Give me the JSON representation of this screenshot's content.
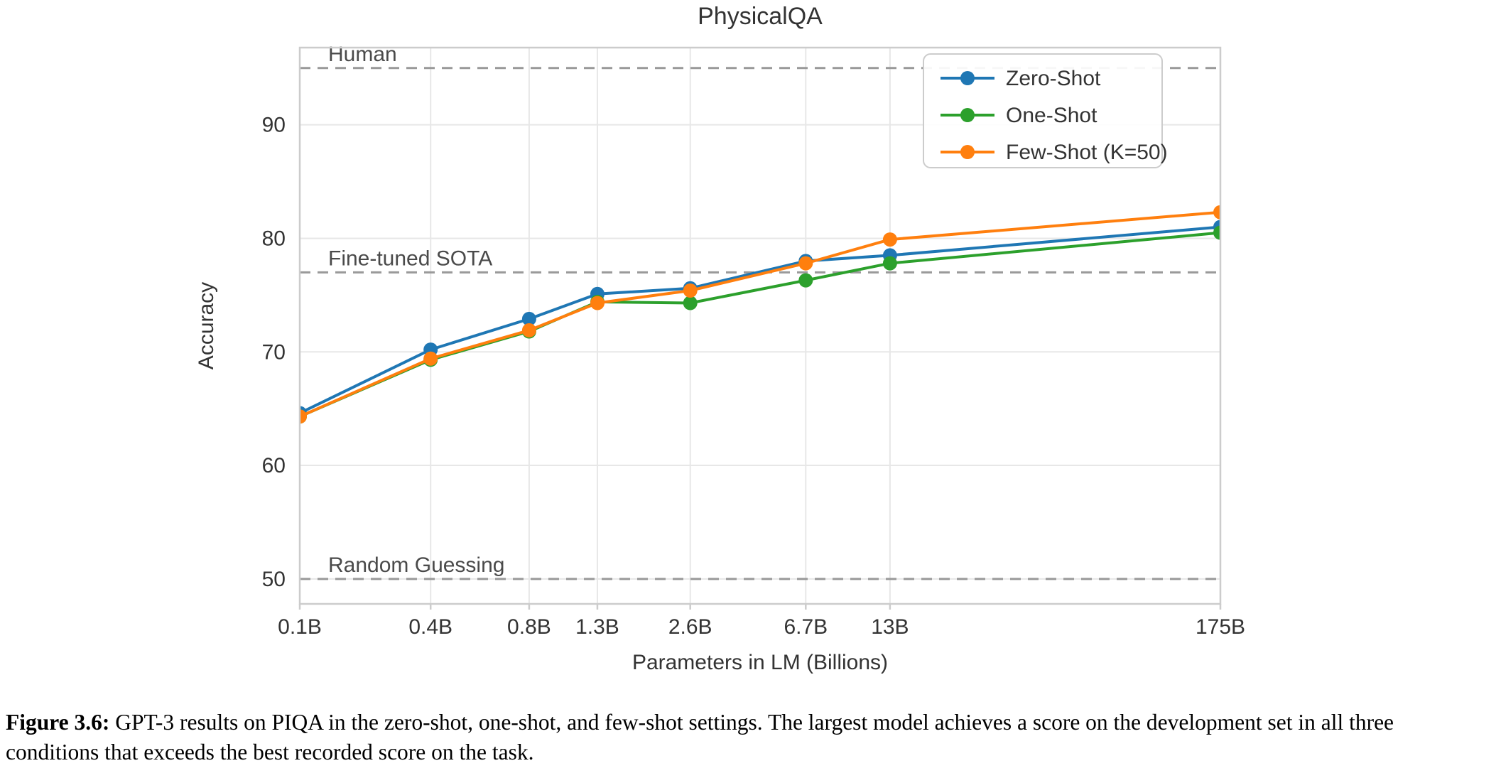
{
  "chart_data": {
    "type": "line",
    "title": "PhysicalQA",
    "xlabel": "Parameters in LM (Billions)",
    "ylabel": "Accuracy",
    "x_scale": "log",
    "categories": [
      "0.1B",
      "0.4B",
      "0.8B",
      "1.3B",
      "2.6B",
      "6.7B",
      "13B",
      "175B"
    ],
    "x": [
      0.125,
      0.35,
      0.76,
      1.3,
      2.7,
      6.7,
      13,
      175
    ],
    "series": [
      {
        "name": "Zero-Shot",
        "color": "#1f77b4",
        "values": [
          64.6,
          70.2,
          72.9,
          75.1,
          75.6,
          78.0,
          78.5,
          81.0
        ]
      },
      {
        "name": "One-Shot",
        "color": "#2ca02c",
        "values": [
          64.3,
          69.3,
          71.8,
          74.4,
          74.3,
          76.3,
          77.8,
          80.5
        ]
      },
      {
        "name": "Few-Shot (K=50)",
        "color": "#ff7f0e",
        "values": [
          64.3,
          69.4,
          71.9,
          74.3,
          75.4,
          77.8,
          79.9,
          82.3
        ]
      }
    ],
    "reference_lines": [
      {
        "label": "Human",
        "value": 95.0
      },
      {
        "label": "Fine-tuned SOTA",
        "value": 77.0
      },
      {
        "label": "Random Guessing",
        "value": 50.0
      }
    ],
    "yticks": [
      50,
      60,
      70,
      80,
      90
    ],
    "ylim": [
      47.8,
      96.8
    ],
    "grid": true,
    "legend_position": "top-right",
    "colors": {
      "grid": "#e7e7e7",
      "spine": "#cccccc",
      "reference_line": "#999999",
      "reference_label": "#4a4a4a",
      "text": "#333333",
      "legend_border": "#cccccc"
    }
  },
  "caption": {
    "prefix": "Figure 3.6:",
    "text": "GPT-3 results on PIQA in the zero-shot, one-shot, and few-shot settings. The largest model achieves a score on the development set in all three conditions that exceeds the best recorded score on the task."
  }
}
